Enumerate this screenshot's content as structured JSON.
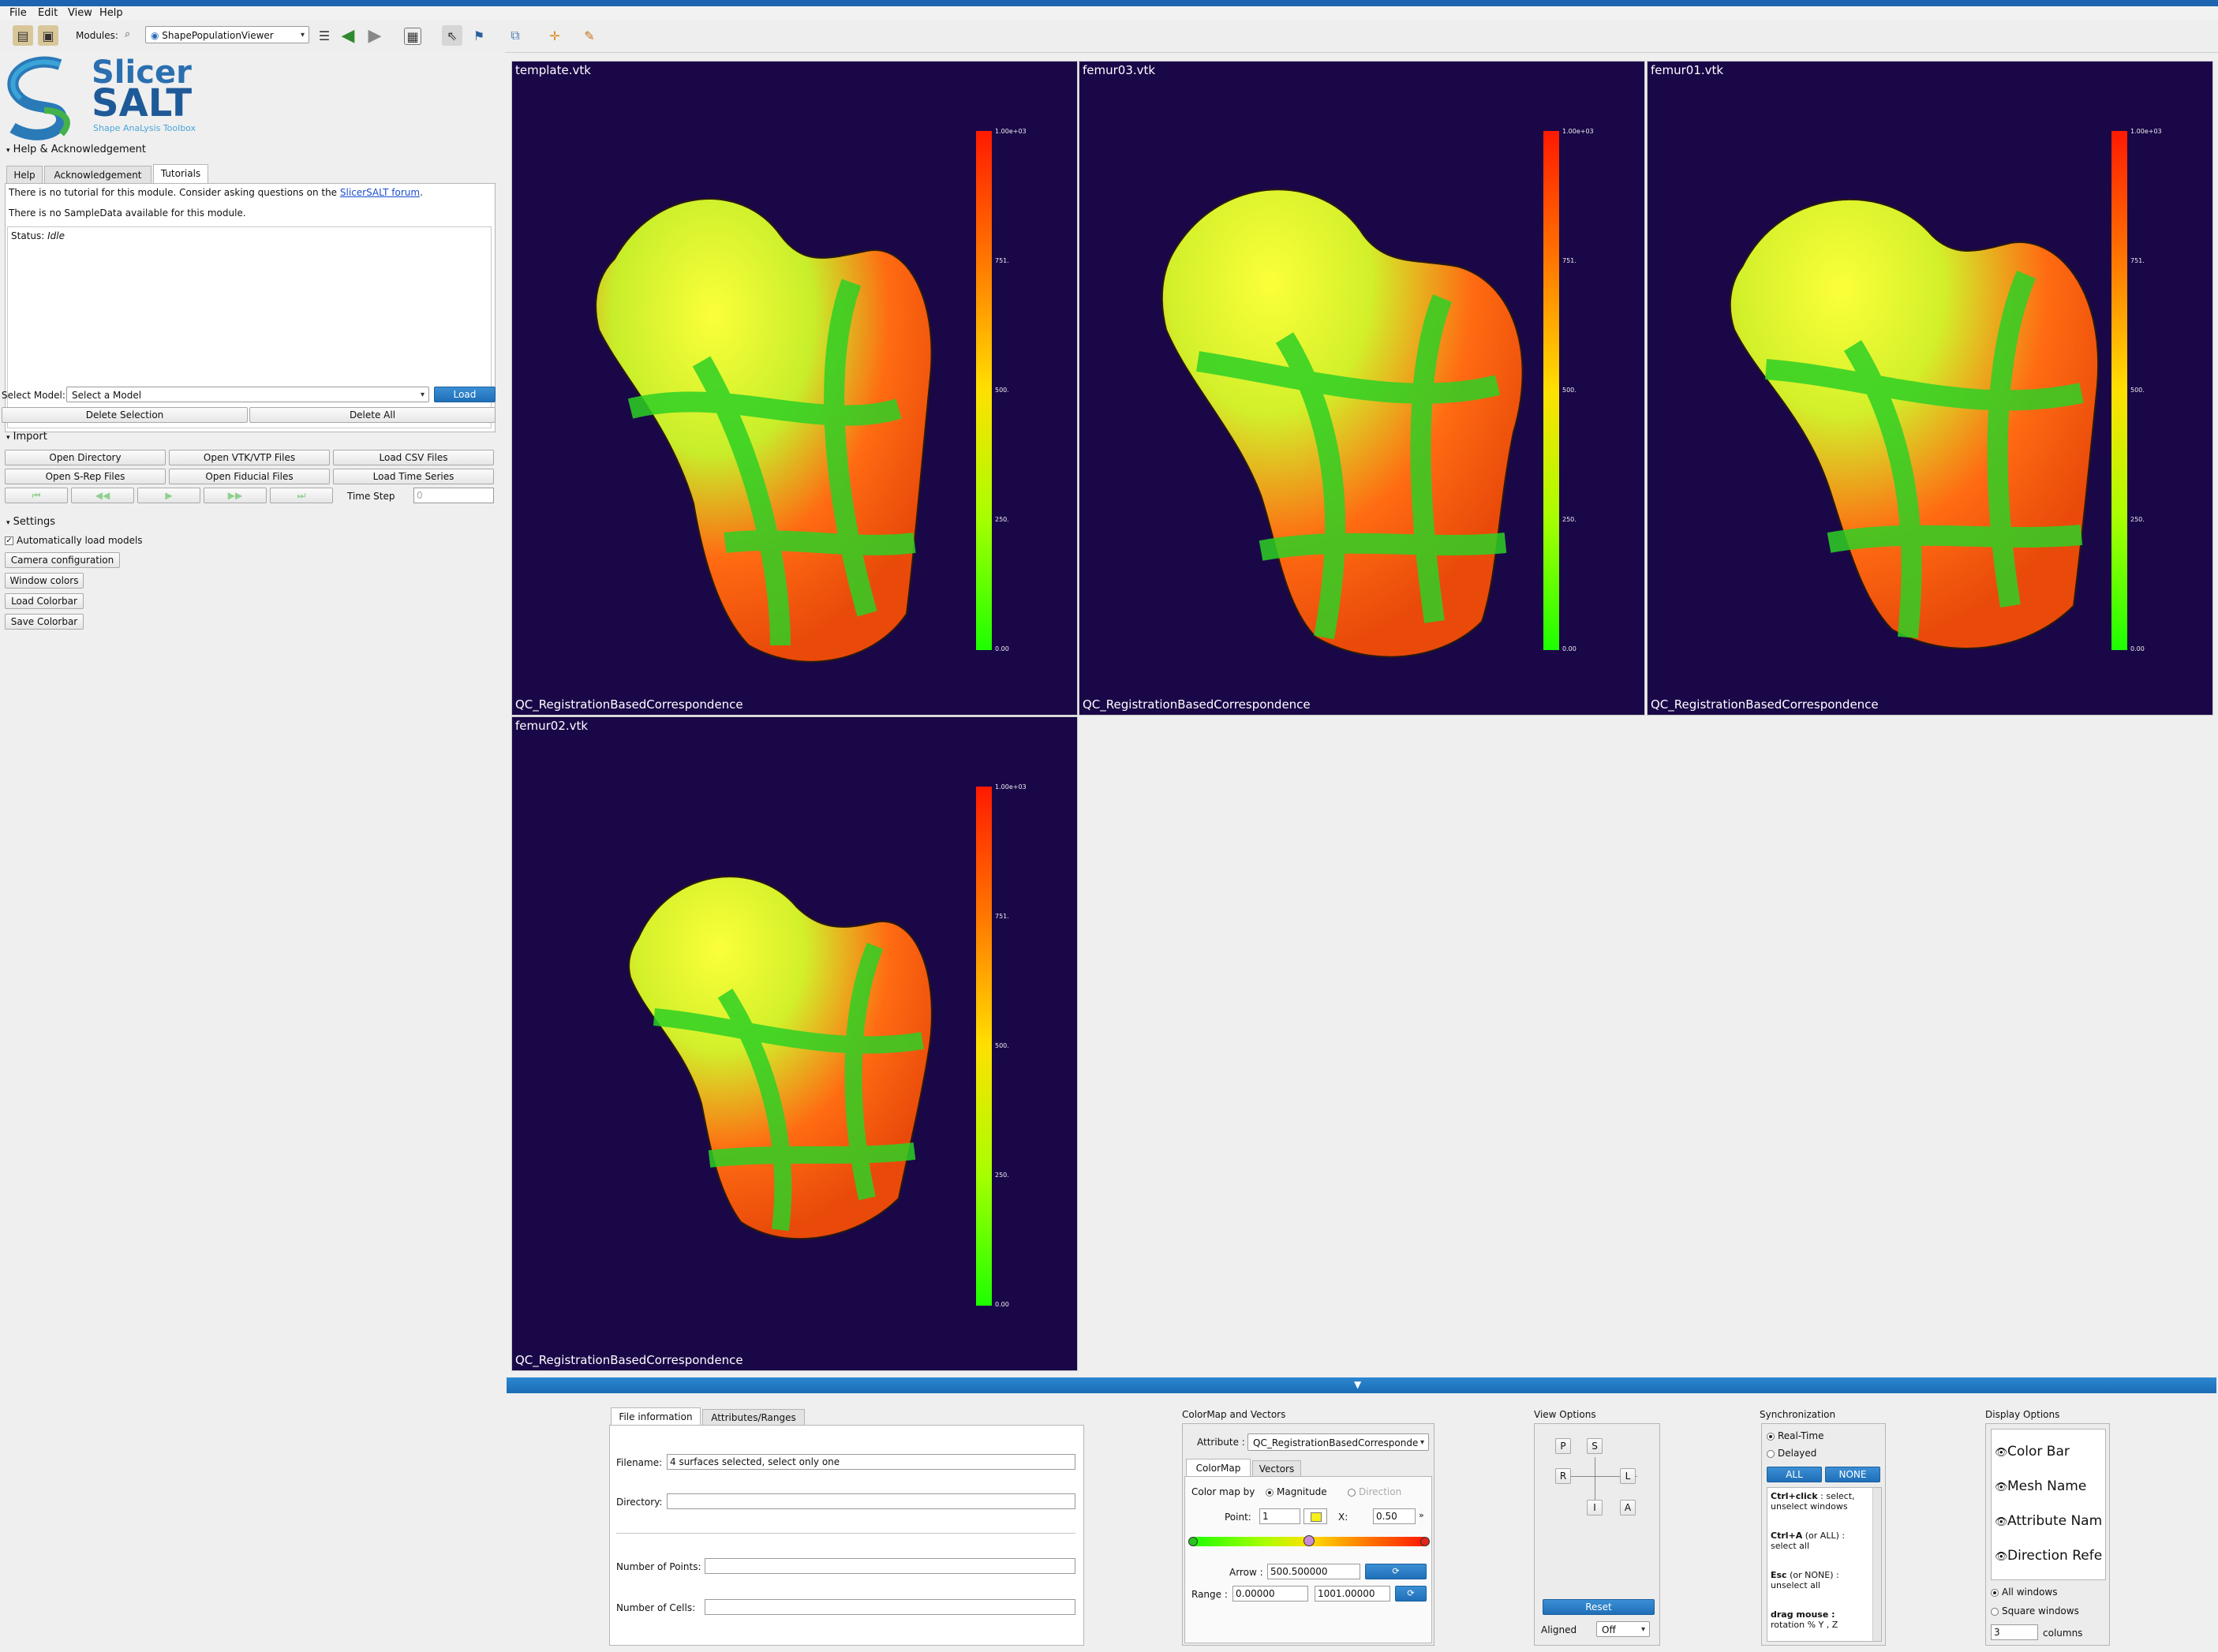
{
  "menu": [
    "File",
    "Edit",
    "View",
    "Help"
  ],
  "toolbar": {
    "modules_label": "Modules:",
    "module_selected": "ShapePopulationViewer"
  },
  "logo": {
    "line1": "Slicer",
    "line2": "SALT",
    "subtitle": "Shape AnaLysis Toolbox"
  },
  "help_section": {
    "title": "Help & Acknowledgement",
    "tabs": [
      "Help",
      "Acknowledgement",
      "Tutorials"
    ],
    "active_tab": "Tutorials",
    "text_prefix": "There is no tutorial for this module. Consider asking questions on the ",
    "link": "SlicerSALT forum",
    "text_suffix": ".",
    "text2": "There is no SampleData available for this module."
  },
  "status": {
    "label": "Status:",
    "value": "Idle"
  },
  "select_model": {
    "label": "Select Model:",
    "placeholder": "Select a Model",
    "load": "Load",
    "delete_selection": "Delete Selection",
    "delete_all": "Delete All"
  },
  "import_section": {
    "title": "Import",
    "buttons": [
      "Open Directory",
      "Open VTK/VTP Files",
      "Load CSV Files",
      "Open S-Rep Files",
      "Open Fiducial Files",
      "Load Time Series"
    ],
    "time_step_label": "Time Step",
    "time_step_value": "0"
  },
  "settings_section": {
    "title": "Settings",
    "auto_load": "Automatically load models",
    "buttons": [
      "Camera configuration",
      "Window colors",
      "Load Colorbar",
      "Save Colorbar"
    ]
  },
  "viewers": [
    {
      "title": "template.vtk",
      "attribute": "QC_RegistrationBasedCorrespondence"
    },
    {
      "title": "femur03.vtk",
      "attribute": "QC_RegistrationBasedCorrespondence"
    },
    {
      "title": "femur01.vtk",
      "attribute": "QC_RegistrationBasedCorrespondence"
    },
    {
      "title": "femur02.vtk",
      "attribute": "QC_RegistrationBasedCorrespondence"
    }
  ],
  "colorbar_ticks": [
    "1.00e+03",
    "751.",
    "500.",
    "250.",
    "0.00"
  ],
  "colors": {
    "viewer_bg": "#1a0748",
    "accent": "#1f6fb8"
  },
  "file_info": {
    "tabs": [
      "File information",
      "Attributes/Ranges"
    ],
    "filename_label": "Filename:",
    "filename_value": "4 surfaces selected, select only one",
    "directory_label": "Directory:",
    "points_label": "Number of Points:",
    "cells_label": "Number of Cells:"
  },
  "colormap": {
    "title": "ColorMap and Vectors",
    "attribute_label": "Attribute :",
    "attribute_value": "QC_RegistrationBasedCorresponde",
    "tabs": [
      "ColorMap",
      "Vectors"
    ],
    "colormap_by": "Color map by",
    "magnitude": "Magnitude",
    "direction": "Direction",
    "point_label": "Point:",
    "point_value": "1",
    "x_label": "X:",
    "x_value": "0.50",
    "arrow_label": "Arrow :",
    "arrow_value": "500.500000",
    "range_label": "Range :",
    "range_min": "0.00000",
    "range_max": "1001.00000"
  },
  "view_options": {
    "title": "View Options",
    "buttons": [
      "P",
      "S",
      "R",
      "L",
      "I",
      "A"
    ],
    "reset": "Reset",
    "aligned_label": "Aligned",
    "aligned_value": "Off"
  },
  "sync": {
    "title": "Synchronization",
    "realtime": "Real-Time",
    "delayed": "Delayed",
    "all": "ALL",
    "none": "NONE",
    "help": [
      {
        "bold": "Ctrl+click",
        "text": " : select, unselect windows"
      },
      {
        "bold": "Ctrl+A",
        "text": " (or ALL) : select all"
      },
      {
        "bold": "Esc",
        "text": " (or NONE) : unselect all"
      },
      {
        "bold": "drag mouse :",
        "text": " rotation % Y , Z"
      }
    ]
  },
  "display": {
    "title": "Display Options",
    "items": [
      "Color Bar",
      "Mesh Name",
      "Attribute Nam",
      "Direction Refe"
    ],
    "all_windows": "All windows",
    "square_windows": "Square windows",
    "columns_value": "3",
    "columns_label": "columns"
  }
}
